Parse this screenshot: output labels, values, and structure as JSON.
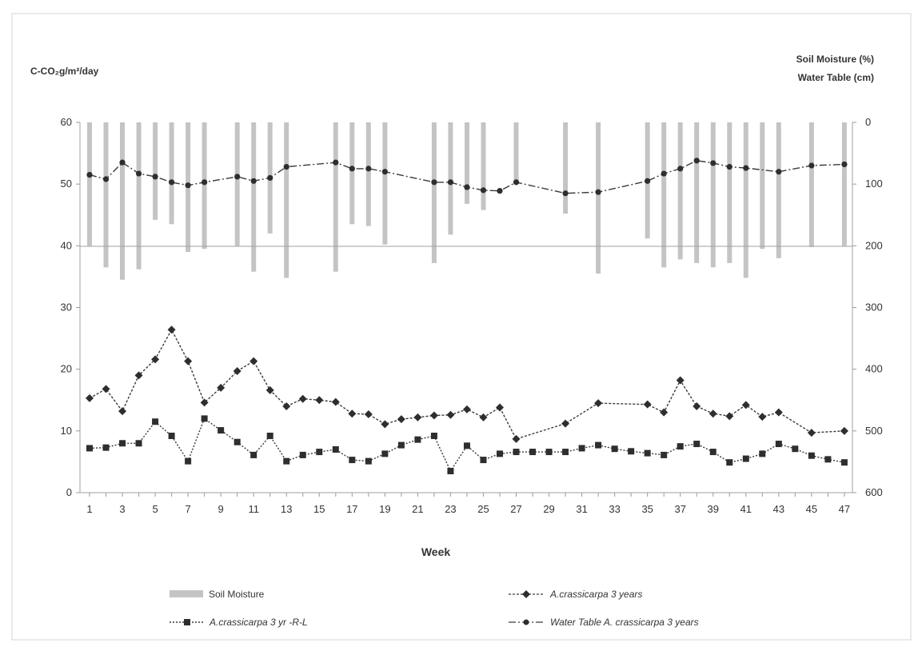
{
  "chart_data": {
    "type": "line",
    "title": "",
    "ylabel_left": "C-CO₂g/m²/day",
    "ylabel_right": [
      "Soil Moisture (%)",
      "Water Table (cm)"
    ],
    "xlabel": "Week",
    "x_ticks": [
      "1",
      "3",
      "5",
      "7",
      "9",
      "11",
      "13",
      "15",
      "17",
      "19",
      "21",
      "23",
      "25",
      "27",
      "29",
      "31",
      "33",
      "35",
      "37",
      "39",
      "41",
      "43",
      "45",
      "47"
    ],
    "y_left_ticks": [
      "60",
      "50",
      "40",
      "30",
      "20",
      "10",
      "0"
    ],
    "y_right_ticks": [
      "0",
      "100",
      "200",
      "300",
      "400",
      "500",
      "600"
    ],
    "y_left_range": [
      0,
      60
    ],
    "y_right_range": [
      0,
      600
    ],
    "y_right_inverted": true,
    "grid": "horizontal-line-at-40",
    "legend_position": "bottom",
    "colors": {
      "soil": "#c4c4c4",
      "diamond": "#3a3a3a",
      "square": "#3a3a3a",
      "water": "#3a3a3a",
      "axis": "#9a9a9a"
    },
    "series": [
      {
        "name": "Soil Moisture",
        "type": "bar",
        "axis": "right",
        "x": [
          1,
          2,
          3,
          4,
          5,
          6,
          7,
          8,
          10,
          11,
          12,
          13,
          16,
          17,
          18,
          19,
          22,
          23,
          24,
          25,
          27,
          30,
          32,
          35,
          36,
          37,
          38,
          39,
          40,
          41,
          42,
          43,
          45,
          47
        ],
        "values": [
          200,
          235,
          255,
          238,
          158,
          165,
          210,
          205,
          200,
          242,
          180,
          252,
          242,
          165,
          168,
          198,
          228,
          182,
          132,
          142,
          100,
          148,
          245,
          188,
          235,
          222,
          228,
          235,
          228,
          252,
          205,
          220,
          202,
          200
        ]
      },
      {
        "name": "A.crassicarpa 3 years",
        "type": "line",
        "marker": "diamond",
        "axis": "left",
        "x": [
          1,
          2,
          3,
          4,
          5,
          6,
          7,
          8,
          9,
          10,
          11,
          12,
          13,
          14,
          15,
          16,
          17,
          18,
          19,
          20,
          21,
          22,
          23,
          24,
          25,
          26,
          27,
          30,
          32,
          35,
          36,
          37,
          38,
          39,
          40,
          41,
          42,
          43,
          45,
          47
        ],
        "values": [
          15.3,
          16.8,
          13.2,
          19,
          21.6,
          26.4,
          21.3,
          14.6,
          17,
          19.7,
          21.3,
          16.6,
          14,
          15.2,
          15,
          14.7,
          12.8,
          12.7,
          11.1,
          11.9,
          12.2,
          12.5,
          12.6,
          13.5,
          12.2,
          13.8,
          8.7,
          11.2,
          14.5,
          14.3,
          13,
          18.2,
          14,
          12.8,
          12.4,
          14.2,
          12.3,
          13,
          9.7,
          10
        ]
      },
      {
        "name": "A.crassicarpa 3 yr -R-L",
        "type": "line",
        "marker": "square",
        "axis": "left",
        "x": [
          1,
          2,
          3,
          4,
          5,
          6,
          7,
          8,
          9,
          10,
          11,
          12,
          13,
          14,
          15,
          16,
          17,
          18,
          19,
          20,
          21,
          22,
          23,
          24,
          25,
          26,
          27,
          28,
          29,
          30,
          31,
          32,
          33,
          34,
          35,
          36,
          37,
          38,
          39,
          40,
          41,
          42,
          43,
          44,
          45,
          46,
          47
        ],
        "values": [
          7.2,
          7.3,
          8,
          8,
          11.5,
          9.2,
          5.1,
          12,
          10.1,
          8.2,
          6.1,
          9.2,
          5.1,
          6.1,
          6.6,
          7,
          5.3,
          5.1,
          6.3,
          7.7,
          8.6,
          9.2,
          3.5,
          7.6,
          5.3,
          6.3,
          6.6,
          6.6,
          6.6,
          6.6,
          7.2,
          7.7,
          7.1,
          6.7,
          6.4,
          6.1,
          7.5,
          7.9,
          6.6,
          4.9,
          5.5,
          6.3,
          7.9,
          7.1,
          6,
          5.4,
          4.9
        ]
      },
      {
        "name": "Water Table  A. crassicarpa 3 years",
        "type": "line",
        "marker": "circle",
        "axis": "right",
        "x": [
          1,
          2,
          3,
          4,
          5,
          6,
          7,
          8,
          10,
          11,
          12,
          13,
          16,
          17,
          18,
          19,
          22,
          23,
          24,
          25,
          26,
          27,
          30,
          32,
          35,
          36,
          37,
          38,
          39,
          40,
          41,
          43,
          45,
          47
        ],
        "values": [
          85,
          92,
          65,
          83,
          88,
          97,
          102,
          97,
          88,
          95,
          90,
          72,
          65,
          75,
          75,
          80,
          97,
          97,
          105,
          110,
          111,
          97,
          115,
          113,
          95,
          83,
          75,
          62,
          66,
          72,
          74,
          80,
          70,
          68
        ]
      }
    ]
  }
}
